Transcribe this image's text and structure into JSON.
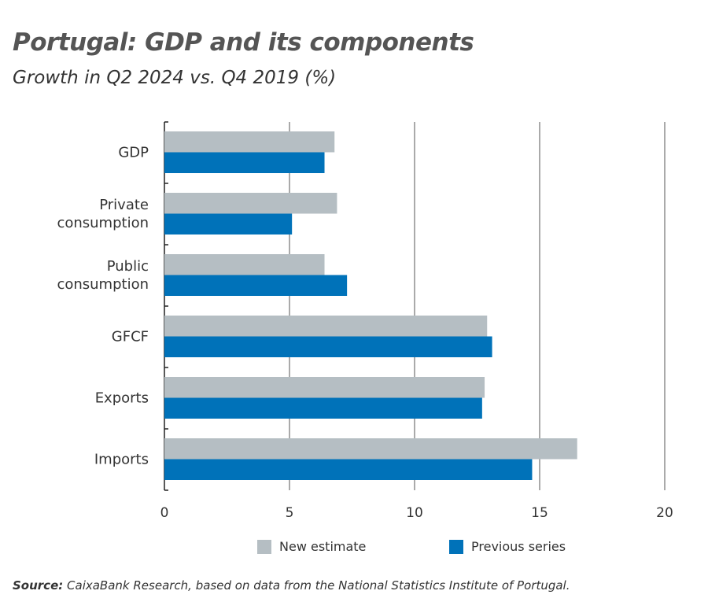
{
  "title": "Portugal: GDP and its components",
  "subtitle": "Growth in Q2 2024 vs. Q4 2019 (%)",
  "source_label": "Source:",
  "source_text": "CaixaBank Research, based on data from the National Statistics Institute of Portugal.",
  "chart_data": {
    "type": "bar",
    "orientation": "horizontal",
    "title": "Portugal: GDP and its components",
    "subtitle": "Growth in Q2 2024 vs. Q4 2019 (%)",
    "categories": [
      "GDP",
      "Private consumption",
      "Public consumption",
      "GFCF",
      "Exports",
      "Imports"
    ],
    "category_lines": [
      [
        "GDP"
      ],
      [
        "Private",
        "consumption"
      ],
      [
        "Public",
        "consumption"
      ],
      [
        "GFCF"
      ],
      [
        "Exports"
      ],
      [
        "Imports"
      ]
    ],
    "series": [
      {
        "name": "New estimate",
        "color": "#b5bec3",
        "values": [
          6.8,
          6.9,
          6.4,
          12.9,
          12.8,
          16.5
        ]
      },
      {
        "name": "Previous series",
        "color": "#0072b9",
        "values": [
          6.4,
          5.1,
          7.3,
          13.1,
          12.7,
          14.7
        ]
      }
    ],
    "xlim": [
      0,
      20
    ],
    "xticks": [
      "0",
      "5",
      "10",
      "15",
      "20"
    ],
    "grid": "vertical",
    "legend_position": "bottom"
  }
}
